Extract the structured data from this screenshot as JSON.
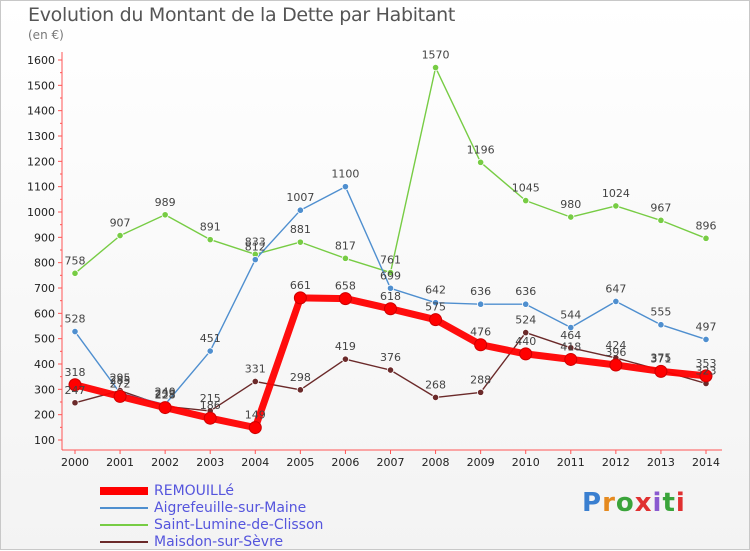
{
  "header": {
    "title": "Evolution du Montant de la Dette par Habitant",
    "unit": "(en €)"
  },
  "logo": {
    "text": "Proxiti"
  },
  "chart_data": {
    "type": "line",
    "title": "Evolution du Montant de la Dette par Habitant",
    "ylabel": "(en €)",
    "x": [
      2000,
      2001,
      2002,
      2003,
      2004,
      2005,
      2006,
      2007,
      2008,
      2009,
      2010,
      2011,
      2012,
      2013,
      2014
    ],
    "ylim": [
      100,
      1600
    ],
    "yticks": [
      100,
      200,
      300,
      400,
      500,
      600,
      700,
      800,
      900,
      1000,
      1100,
      1200,
      1300,
      1400,
      1500,
      1600
    ],
    "grid": false,
    "legend": "bottom-left",
    "series": [
      {
        "name": "REMOUILLé",
        "color": "#ff0000",
        "values": [
          318,
          272,
          228,
          186,
          149,
          661,
          658,
          618,
          575,
          476,
          440,
          418,
          396,
          371,
          353
        ]
      },
      {
        "name": "Aigrefeuille-sur-Maine",
        "color": "#4f8fcf",
        "values": [
          528,
          285,
          240,
          451,
          812,
          1007,
          1100,
          699,
          642,
          636,
          636,
          544,
          647,
          555,
          497
        ]
      },
      {
        "name": "Saint-Lumine-de-Clisson",
        "color": "#77cc44",
        "values": [
          758,
          907,
          989,
          891,
          833,
          881,
          817,
          761,
          1570,
          1196,
          1045,
          980,
          1024,
          967,
          896
        ]
      },
      {
        "name": "Maisdon-sur-Sèvre",
        "color": "#6b2a2a",
        "values": [
          247,
          295,
          233,
          215,
          331,
          298,
          419,
          376,
          268,
          288,
          524,
          464,
          424,
          375,
          323
        ]
      }
    ]
  }
}
